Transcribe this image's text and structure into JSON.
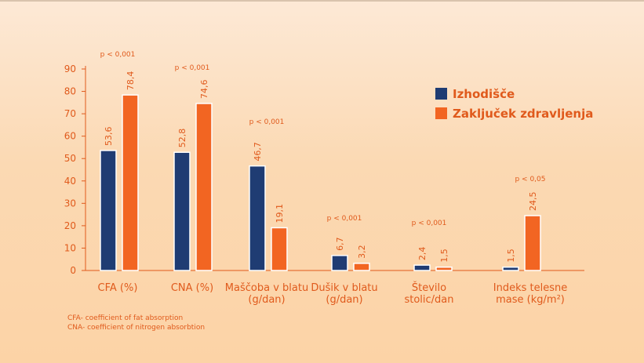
{
  "chart_data": {
    "type": "bar",
    "categories": [
      [
        "CFA (%)"
      ],
      [
        "CNA (%)"
      ],
      [
        "Maščoba v blatu",
        "(g/dan)"
      ],
      [
        "Dušik v blatu",
        "(g/dan)"
      ],
      [
        "Število",
        "stolic/dan"
      ],
      [
        "Indeks telesne",
        "mase (kg/m²)"
      ]
    ],
    "series": [
      {
        "name": "Izhodišče",
        "color": "#1f3c73",
        "values": [
          53.6,
          52.8,
          46.7,
          6.7,
          2.4,
          1.5
        ],
        "labels": [
          "53,6",
          "52,8",
          "46,7",
          "6,7",
          "2,4",
          "1,5"
        ]
      },
      {
        "name": "Zaključek zdravljenja",
        "color": "#f26522",
        "values": [
          78.4,
          74.6,
          19.1,
          3.2,
          1.5,
          24.5
        ],
        "labels": [
          "78,4",
          "74,6",
          "19,1",
          "3,2",
          "1,5",
          "24,5"
        ]
      }
    ],
    "pvalues": [
      "p < 0,001",
      "p < 0,001",
      "p < 0,001",
      "p < 0,001",
      "p < 0,001",
      "p < 0,05"
    ],
    "ylim": [
      0,
      90
    ],
    "yticks": [
      0,
      10,
      20,
      30,
      40,
      50,
      60,
      70,
      80,
      90
    ],
    "legend_position": "top-right",
    "grid": false
  },
  "footnotes": {
    "line1": "CFA- coefficient of fat absorption",
    "line2": "CNA- coefficient of nitrogen absorbtion"
  },
  "colors": {
    "navy": "#1f3c73",
    "orange": "#f26522",
    "text_orange": "#e05a1c",
    "background": "#fbd9b3"
  }
}
